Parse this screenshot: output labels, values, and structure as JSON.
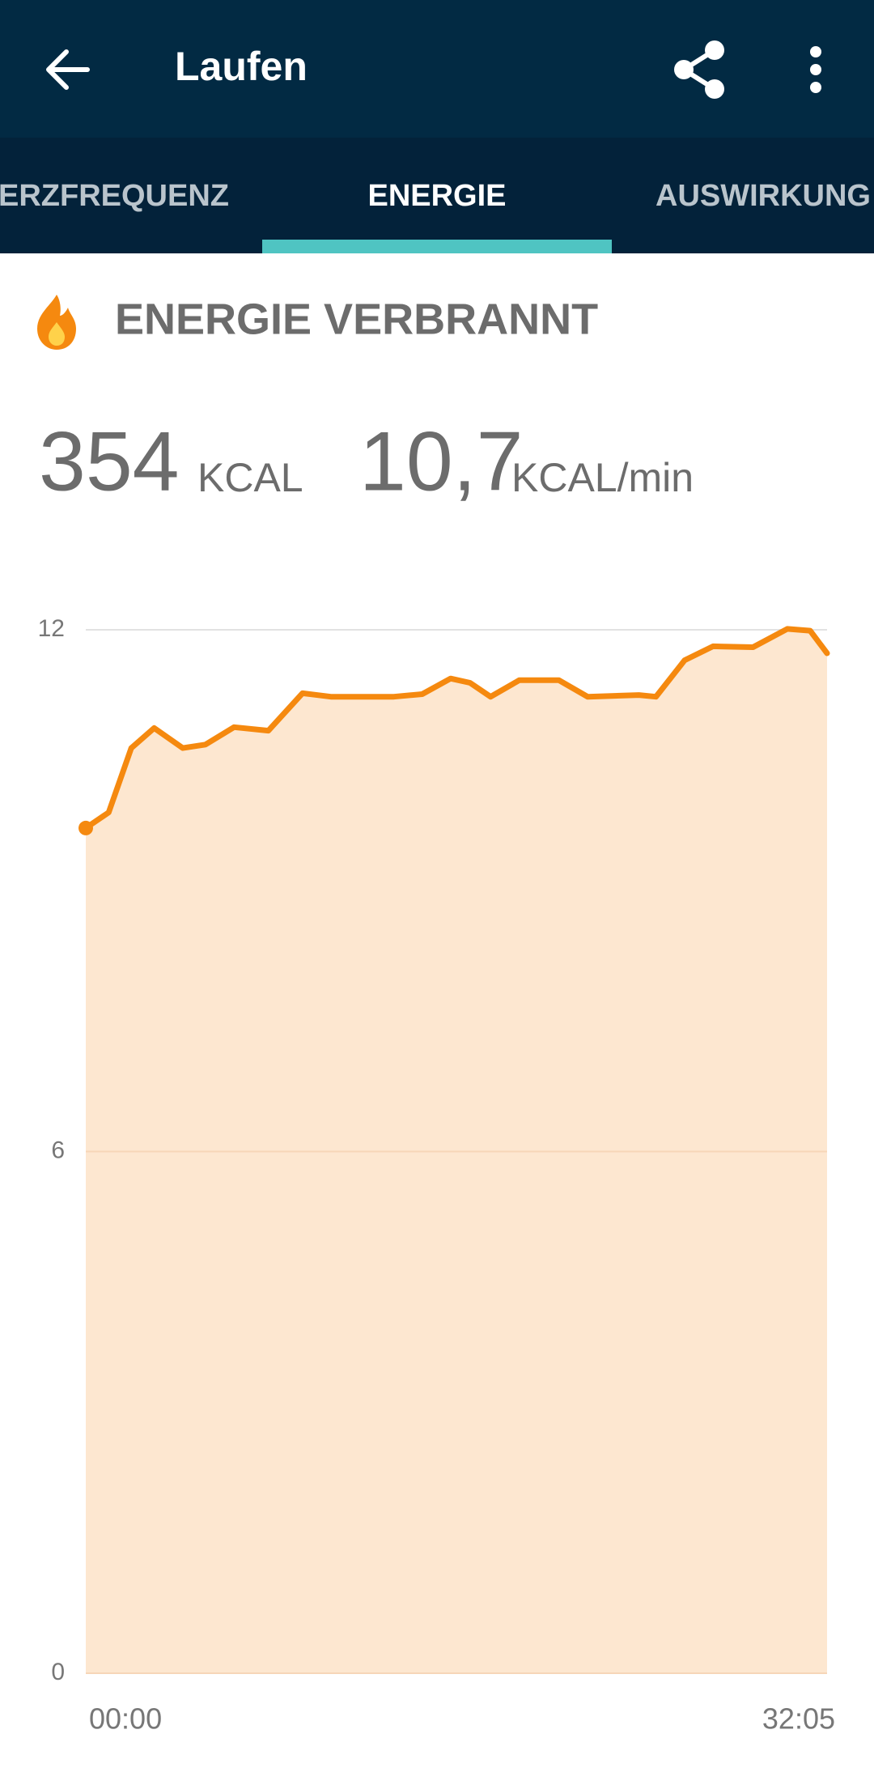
{
  "header": {
    "title": "Laufen"
  },
  "tabs": [
    "ERZFREQUENZ",
    "ENERGIE",
    "AUSWIRKUNG"
  ],
  "section": {
    "title": "ENERGIE VERBRANNT",
    "stats": [
      {
        "value": 354,
        "unit": "KCAL"
      },
      {
        "value": "10,7",
        "unit": "KCAL/min"
      }
    ]
  },
  "chart_data": {
    "type": "area",
    "x": [
      0,
      0.99,
      1.97,
      2.96,
      4.2,
      5.18,
      6.42,
      7.9,
      9.38,
      10.61,
      13.33,
      14.56,
      15.79,
      16.63,
      17.52,
      18.76,
      20.48,
      21.72,
      23.94,
      24.68,
      25.92,
      27.15,
      28.88,
      30.36,
      31.35,
      32.0833
    ],
    "values": [
      9.72,
      9.9,
      10.64,
      10.87,
      10.64,
      10.68,
      10.88,
      10.84,
      11.27,
      11.23,
      11.23,
      11.26,
      11.44,
      11.39,
      11.23,
      11.42,
      11.42,
      11.23,
      11.25,
      11.23,
      11.65,
      11.81,
      11.8,
      12.01,
      11.99,
      11.73
    ],
    "color": "#f5890f",
    "fill": "#fde7d0",
    "xlim": [
      0,
      32.0833
    ],
    "xticks": [
      {
        "value": 0,
        "label": "00:00"
      },
      {
        "value": 32.0833,
        "label": "32:05"
      }
    ],
    "ylim": [
      0,
      12
    ],
    "yticks": [
      0,
      6,
      12
    ],
    "grid": true
  }
}
